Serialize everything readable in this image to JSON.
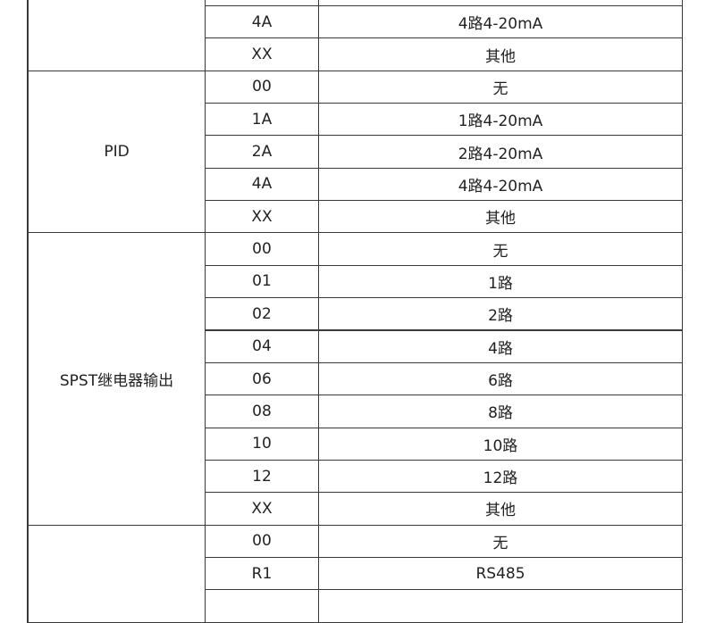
{
  "table": {
    "groups": [
      {
        "label": "",
        "rows": [
          {
            "code": "",
            "desc": ""
          },
          {
            "code": "4A",
            "desc": "4路4-20mA"
          },
          {
            "code": "XX",
            "desc": "其他"
          }
        ]
      },
      {
        "label": "PID",
        "rows": [
          {
            "code": "00",
            "desc": "无"
          },
          {
            "code": "1A",
            "desc": "1路4-20mA"
          },
          {
            "code": "2A",
            "desc": "2路4-20mA"
          },
          {
            "code": "4A",
            "desc": "4路4-20mA"
          },
          {
            "code": "XX",
            "desc": "其他"
          }
        ]
      },
      {
        "label": "SPST继电器输出",
        "rows": [
          {
            "code": "00",
            "desc": "无"
          },
          {
            "code": "01",
            "desc": "1路"
          },
          {
            "code": "02",
            "desc": "2路"
          },
          {
            "code": "04",
            "desc": "4路"
          },
          {
            "code": "06",
            "desc": "6路"
          },
          {
            "code": "08",
            "desc": "8路"
          },
          {
            "code": "10",
            "desc": "10路"
          },
          {
            "code": "12",
            "desc": "12路"
          },
          {
            "code": "XX",
            "desc": "其他"
          }
        ]
      },
      {
        "label": "",
        "rows": [
          {
            "code": "00",
            "desc": "无"
          },
          {
            "code": "R1",
            "desc": "RS485"
          },
          {
            "code": "",
            "desc": ""
          }
        ]
      }
    ]
  }
}
